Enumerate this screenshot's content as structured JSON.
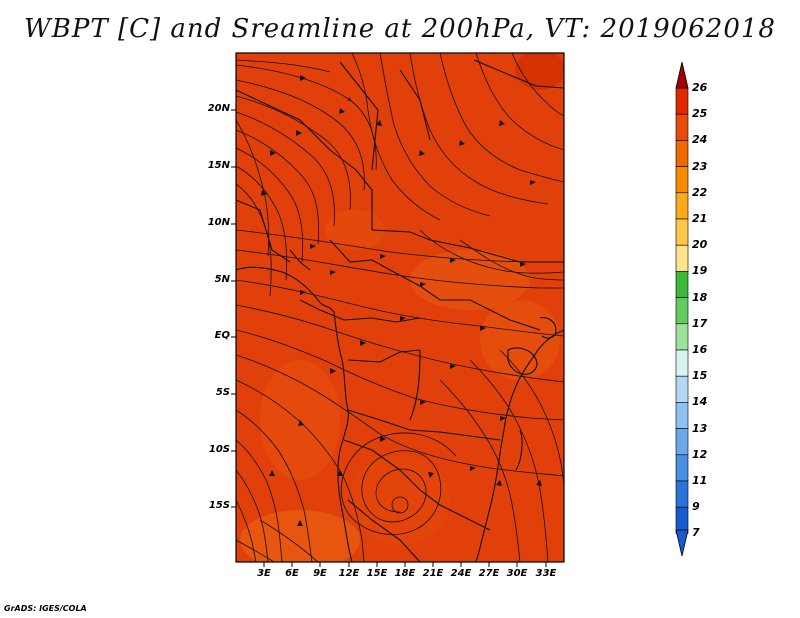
{
  "title": "WBPT [C] and Sreamline at 200hPa, VT: 2019062018",
  "credit": "GrADS: IGES/COLA",
  "lat_labels": [
    "20N",
    "15N",
    "10N",
    "5N",
    "EQ",
    "5S",
    "10S",
    "15S"
  ],
  "lon_labels": [
    "3E",
    "6E",
    "9E",
    "12E",
    "15E",
    "18E",
    "21E",
    "24E",
    "27E",
    "30E",
    "33E"
  ],
  "colorbar": {
    "labels": [
      "26",
      "25",
      "24",
      "23",
      "22",
      "21",
      "20",
      "19",
      "18",
      "17",
      "16",
      "15",
      "14",
      "13",
      "12",
      "11",
      "9",
      "7"
    ],
    "colors": [
      "#c00000",
      "#e12800",
      "#e84a0a",
      "#ee6a00",
      "#f78c00",
      "#fbab1a",
      "#fdc84a",
      "#fde38a",
      "#3cb83c",
      "#62cc62",
      "#9ee09e",
      "#d8f4f0",
      "#b4d8f4",
      "#8ec1ee",
      "#6aa8e6",
      "#4a8ee0",
      "#2c72d8",
      "#1a5ad0"
    ],
    "top_arrow_color": "#a00000",
    "bottom_arrow_color": "#1a5ad0"
  },
  "map": {
    "field_color": "#e2400a",
    "variable": "WBPT [C]",
    "level": "200hPa",
    "valid_time": "2019062018"
  }
}
